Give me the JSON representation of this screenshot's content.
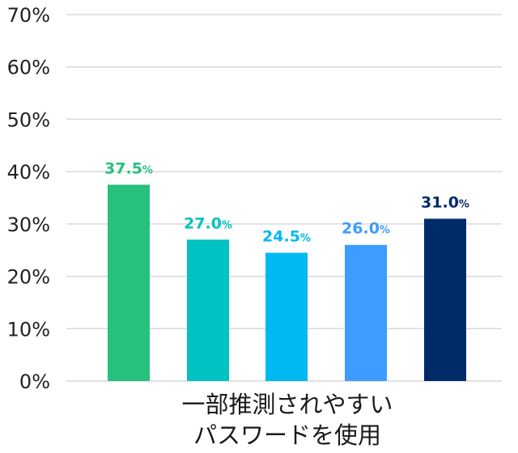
{
  "chart_data": {
    "type": "bar",
    "categories": [
      "一部推測されやすいパスワードを使用"
    ],
    "category_label_lines": [
      "一部推測されやすい",
      "パスワードを使用"
    ],
    "series": [
      {
        "values": [
          37.5
        ],
        "label": "37.5",
        "unit": "%",
        "color": "#26c17c"
      },
      {
        "values": [
          27.0
        ],
        "label": "27.0",
        "unit": "%",
        "color": "#00c2c2"
      },
      {
        "values": [
          24.5
        ],
        "label": "24.5",
        "unit": "%",
        "color": "#00b9f2"
      },
      {
        "values": [
          26.0
        ],
        "label": "26.0",
        "unit": "%",
        "color": "#3d9cff"
      },
      {
        "values": [
          31.0
        ],
        "label": "31.0",
        "unit": "%",
        "color": "#002b6b"
      }
    ],
    "ylim": [
      0,
      70
    ],
    "yticks": [
      "0%",
      "10%",
      "20%",
      "30%",
      "40%",
      "50%",
      "60%",
      "70%"
    ],
    "ytick_values": [
      0,
      10,
      20,
      30,
      40,
      50,
      60,
      70
    ],
    "grid": true,
    "legend": "none"
  }
}
